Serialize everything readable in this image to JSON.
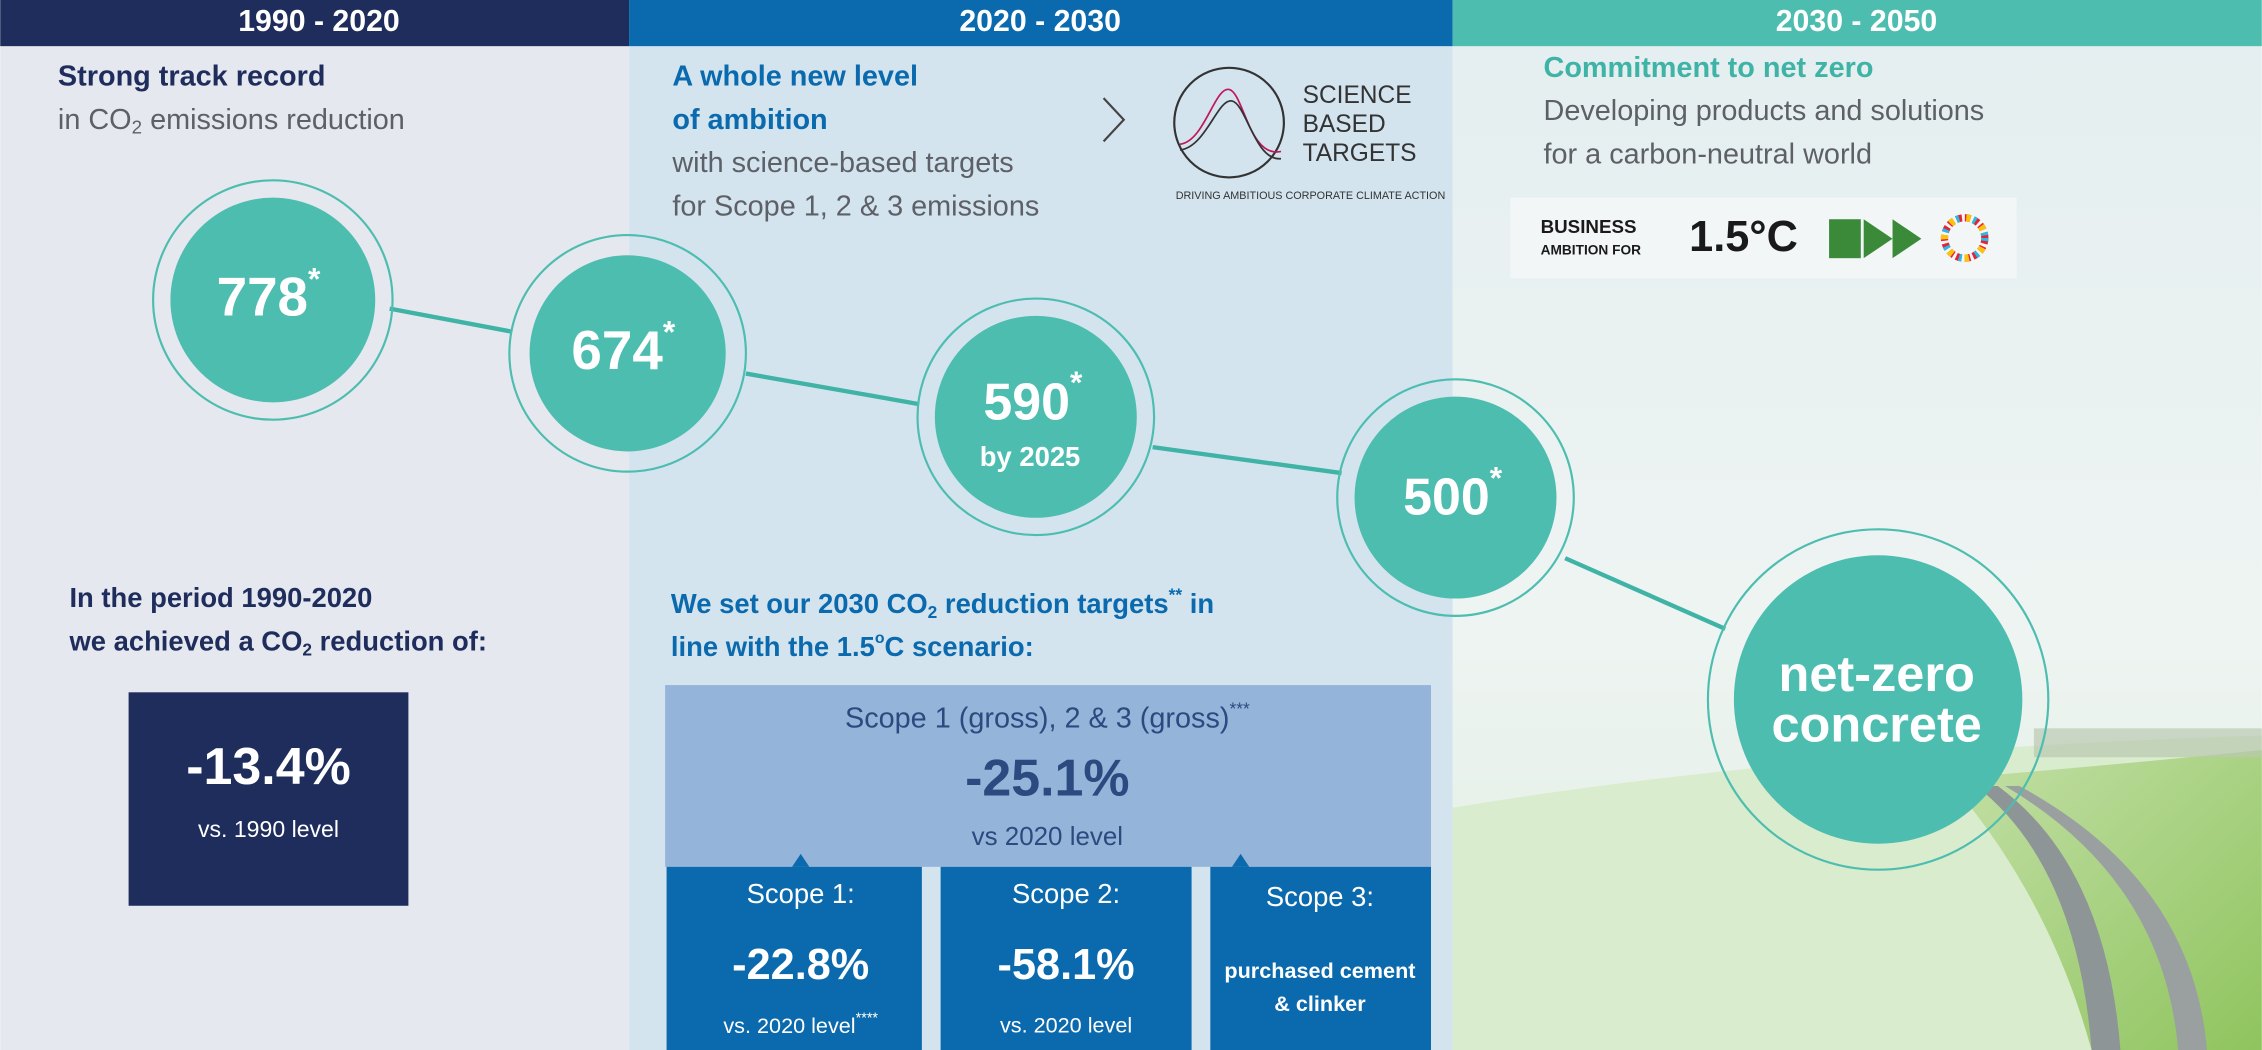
{
  "columns": [
    {
      "header": "1990 - 2020"
    },
    {
      "header": "2020 - 2030"
    },
    {
      "header": "2030 - 2050"
    }
  ],
  "past": {
    "title": "Strong track record",
    "subtitle": [
      "in CO",
      "2",
      " emissions reduction"
    ],
    "period_line1": "In the period 1990-2020",
    "period_line2": [
      "we achieved a CO",
      "2",
      " reduction of:"
    ],
    "result": "-13.4%",
    "result_note": "vs. 1990 level"
  },
  "present": {
    "title_line1": "A whole new level",
    "title_line2": "of ambition",
    "text_line1": "with science-based targets",
    "text_line2": "for Scope 1, 2 & 3 emissions",
    "logo": [
      "SCIENCE",
      "BASED",
      "TARGETS"
    ],
    "logo_tagline": "DRIVING AMBITIOUS CORPORATE CLIMATE ACTION",
    "targets_line1": [
      "We set our 2030 CO",
      "2",
      " reduction targets",
      "**",
      " in"
    ],
    "targets_line2": [
      "line with the 1.5",
      "o",
      "C scenario:"
    ],
    "total": {
      "label": [
        "Scope 1 (gross), 2 & 3 (gross)",
        "***"
      ],
      "value": "-25.1%",
      "note": "vs 2020 level"
    },
    "scopes": [
      {
        "label": "Scope 1:",
        "value": "-22.8%",
        "note": [
          "vs. 2020 level",
          "****"
        ]
      },
      {
        "label": "Scope 2:",
        "value": "-58.1%",
        "note": [
          "vs. 2020 level"
        ]
      },
      {
        "label": "Scope 3:",
        "text": [
          "purchased cement",
          "& clinker"
        ]
      }
    ]
  },
  "future": {
    "title": "Commitment to net zero",
    "text_line1": "Developing products and solutions",
    "text_line2": "for a carbon-neutral world",
    "badge": [
      "BUSINESS",
      "AMBITION FOR",
      "1.5°C"
    ]
  },
  "milestones": [
    {
      "value": 778,
      "mark": "*"
    },
    {
      "value": 674,
      "mark": "*"
    },
    {
      "value": 590,
      "mark": "*",
      "note": "by 2025"
    },
    {
      "value": 500,
      "mark": "*"
    },
    {
      "label": [
        "net-zero",
        "concrete"
      ]
    }
  ]
}
